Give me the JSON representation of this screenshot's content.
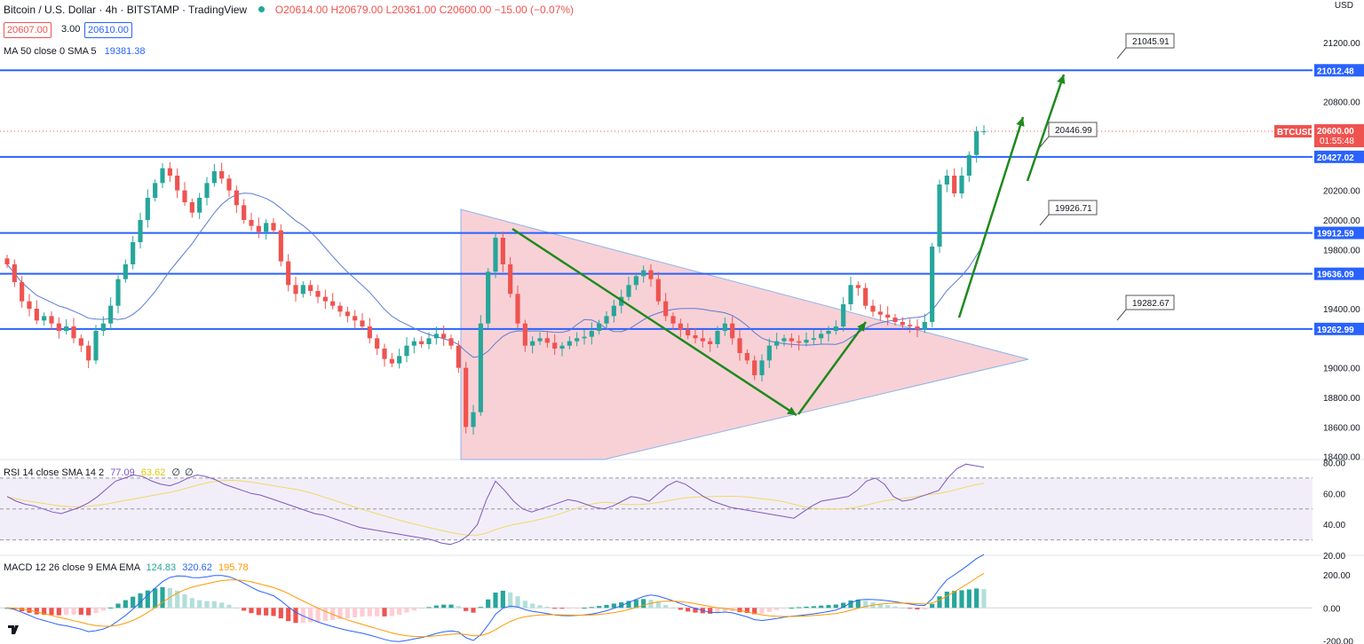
{
  "header": {
    "symbol": "Bitcoin / U.S. Dollar · 4h · BITSTAMP · TradingView",
    "ohlc": "O20614.00 H20679.00 L20361.00 C20600.00 −15.00 (−0.07%)",
    "bid": "20607.00",
    "spread": "3.00",
    "ask": "20610.00",
    "ma_label": "MA 50 close 0 SMA 5",
    "ma_value": "19381.38",
    "currency": "USD"
  },
  "colors": {
    "up": "#26a69a",
    "down": "#ef5350",
    "level_line": "#2962ff",
    "ma": "#5b7bd5",
    "arrow": "#1e8a1e",
    "triangle_fill": "#f7c9d0",
    "rsi": "#7e57c2",
    "rsi_sma": "#f0d86a",
    "macd": "#2962ff",
    "signal": "#ff9800"
  },
  "chart_data": [
    {
      "type": "candlestick",
      "title": "Bitcoin / U.S. Dollar · 4h · BITSTAMP",
      "y_ticks": [
        "21200.00",
        "20800.00",
        "20200.00",
        "20000.00",
        "19800.00",
        "19400.00",
        "19000.00",
        "18800.00",
        "18600.00",
        "18400.00"
      ],
      "ylim": [
        18380,
        21380
      ],
      "levels": [
        {
          "value": 21012.48,
          "label": "21012.48",
          "callout": "21045.91"
        },
        {
          "value": 20427.02,
          "label": "20427.02",
          "callout": "20446.99"
        },
        {
          "value": 19912.59,
          "label": "19912.59",
          "callout": "19926.71"
        },
        {
          "value": 19636.09,
          "label": "19636.09",
          "callout": null
        },
        {
          "value": 19262.99,
          "label": "19262.99",
          "callout": "19282.67"
        }
      ],
      "last_price": {
        "value": 20600.0,
        "label": "20600.00",
        "countdown": "01:55:48",
        "ticker": "BTCUSD"
      },
      "close_series": [
        19700,
        19580,
        19450,
        19400,
        19320,
        19350,
        19300,
        19250,
        19280,
        19200,
        19150,
        19050,
        19250,
        19300,
        19420,
        19600,
        19700,
        19850,
        20000,
        20150,
        20250,
        20350,
        20300,
        20200,
        20120,
        20050,
        20150,
        20250,
        20330,
        20280,
        20200,
        20100,
        20000,
        19960,
        19920,
        19980,
        19930,
        19720,
        19560,
        19500,
        19560,
        19520,
        19480,
        19450,
        19420,
        19380,
        19350,
        19320,
        19280,
        19200,
        19130,
        19060,
        19030,
        19080,
        19150,
        19180,
        19160,
        19200,
        19230,
        19200,
        19150,
        19000,
        18600,
        18700,
        19300,
        19650,
        19880,
        19700,
        19500,
        19300,
        19150,
        19180,
        19200,
        19170,
        19130,
        19150,
        19180,
        19200,
        19210,
        19250,
        19300,
        19350,
        19420,
        19480,
        19560,
        19620,
        19660,
        19600,
        19450,
        19350,
        19300,
        19260,
        19220,
        19200,
        19180,
        19160,
        19250,
        19300,
        19200,
        19100,
        19050,
        18950,
        19050,
        19150,
        19180,
        19200,
        19180,
        19170,
        19190,
        19200,
        19230,
        19250,
        19280,
        19430,
        19560,
        19540,
        19420,
        19380,
        19360,
        19340,
        19310,
        19290,
        19280,
        19260,
        19310,
        19820,
        20240,
        20300,
        20180,
        20300,
        20440,
        20600,
        20600
      ]
    },
    {
      "type": "line",
      "title": "RSI 14 close SMA 14 2",
      "series": [
        {
          "name": "RSI",
          "value_label": "77.09"
        },
        {
          "name": "SMA",
          "value_label": "63.62"
        }
      ],
      "extra_labels": [
        "∅",
        "∅"
      ],
      "y_ticks": [
        "80.00",
        "60.00",
        "40.00",
        "20.00"
      ],
      "ylim": [
        20,
        82
      ],
      "bands": [
        30,
        50,
        70
      ],
      "rsi_values": [
        58,
        55,
        53,
        52,
        50,
        48,
        47,
        49,
        51,
        54,
        58,
        63,
        68,
        70,
        72,
        71,
        68,
        66,
        65,
        67,
        70,
        72,
        71,
        69,
        66,
        64,
        62,
        60,
        59,
        57,
        55,
        53,
        51,
        49,
        47,
        46,
        44,
        42,
        40,
        38,
        37,
        36,
        35,
        34,
        33,
        32,
        31,
        30,
        28,
        27,
        29,
        33,
        40,
        56,
        68,
        62,
        55,
        50,
        48,
        50,
        52,
        54,
        56,
        55,
        53,
        51,
        50,
        52,
        55,
        58,
        57,
        55,
        60,
        65,
        68,
        66,
        62,
        58,
        55,
        53,
        51,
        50,
        49,
        48,
        47,
        46,
        45,
        44,
        48,
        52,
        55,
        56,
        57,
        58,
        62,
        68,
        70,
        66,
        58,
        55,
        56,
        58,
        60,
        62,
        70,
        76,
        79,
        78,
        77
      ]
    },
    {
      "type": "bar",
      "title": "MACD 12 26 close 9 EMA EMA",
      "series": [
        {
          "name": "Histogram",
          "value_label": "124.83"
        },
        {
          "name": "MACD",
          "value_label": "320.62"
        },
        {
          "name": "Signal",
          "value_label": "195.78"
        }
      ],
      "y_ticks": [
        "200.00",
        "0.00",
        "-200.00"
      ],
      "ylim": [
        -220,
        320
      ]
    }
  ]
}
